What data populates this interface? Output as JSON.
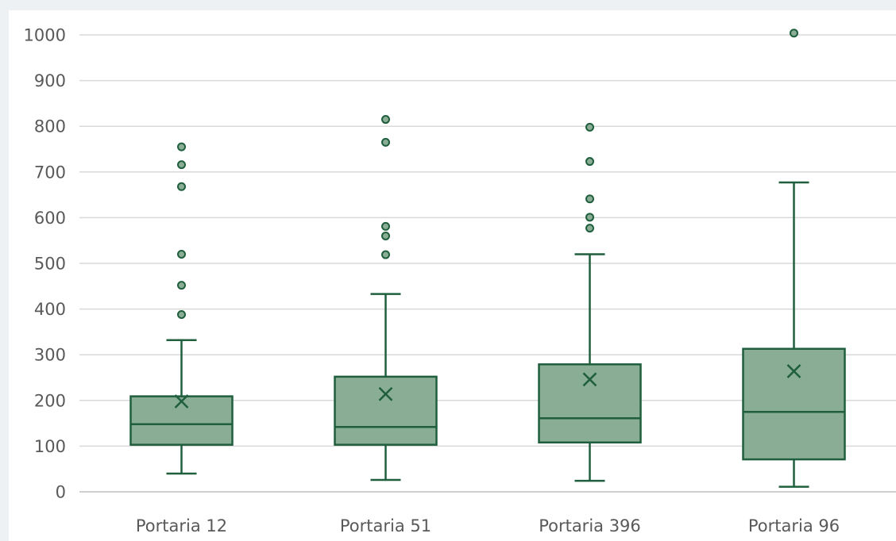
{
  "chart_data": {
    "type": "box",
    "title": "",
    "xlabel": "",
    "ylabel": "",
    "ylim": [
      0,
      1000
    ],
    "y_ticks": [
      0,
      100,
      200,
      300,
      400,
      500,
      600,
      700,
      800,
      900,
      1000
    ],
    "grid": true,
    "legend": "none",
    "colors": {
      "box_fill": "#89ad95",
      "stroke": "#1f5f3d",
      "grid": "#d9d9d9",
      "label": "#595959"
    },
    "categories": [
      "Portaria 12",
      "Portaria 51",
      "Portaria 396",
      "Portaria 96"
    ],
    "boxes": [
      {
        "category": "Portaria 12",
        "min": 40,
        "q1": 103,
        "median": 148,
        "q3": 209,
        "max": 332,
        "mean": 198,
        "outliers": [
          388,
          452,
          520,
          668,
          716,
          755
        ]
      },
      {
        "category": "Portaria 51",
        "min": 26,
        "q1": 103,
        "median": 142,
        "q3": 252,
        "max": 433,
        "mean": 214,
        "outliers": [
          519,
          560,
          581,
          765,
          815
        ]
      },
      {
        "category": "Portaria 396",
        "min": 24,
        "q1": 108,
        "median": 161,
        "q3": 279,
        "max": 520,
        "mean": 246,
        "outliers": [
          577,
          601,
          641,
          723,
          798
        ]
      },
      {
        "category": "Portaria 96",
        "min": 11,
        "q1": 71,
        "median": 175,
        "q3": 313,
        "max": 677,
        "mean": 264,
        "outliers": [
          1004
        ]
      }
    ]
  }
}
